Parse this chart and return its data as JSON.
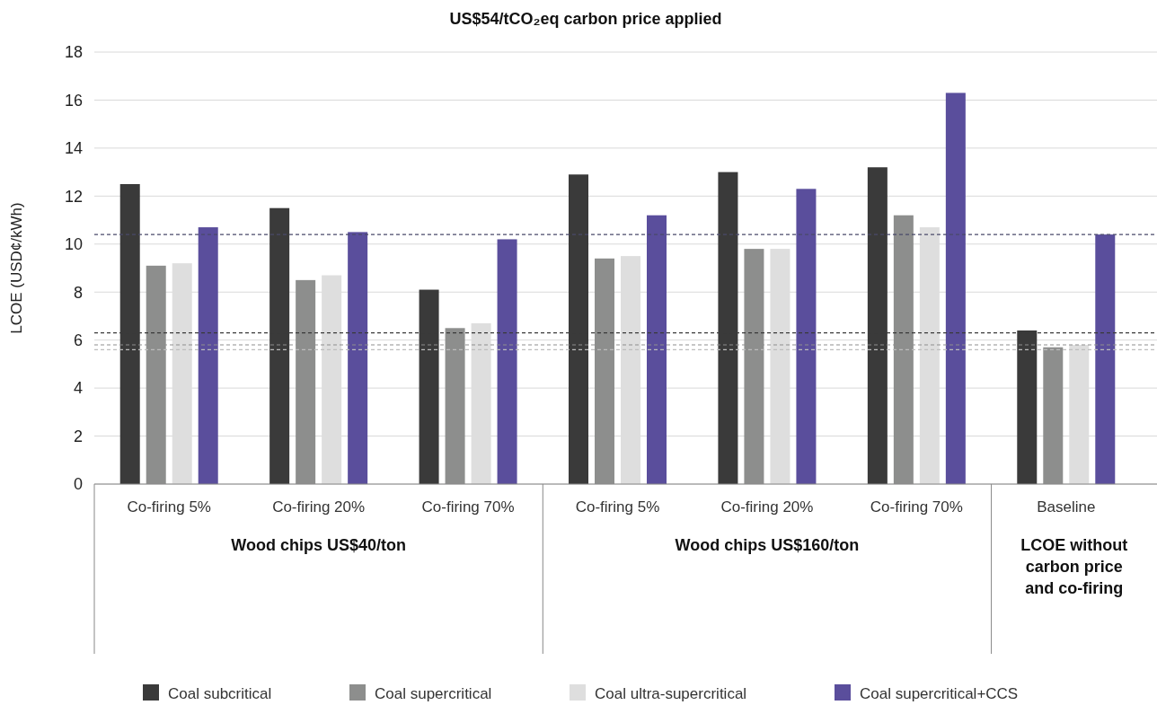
{
  "chart_data": {
    "type": "bar",
    "title": "US$54/tCO₂eq carbon price applied",
    "ylabel": "LCOE (USD¢/kWh)",
    "categories": [
      "Co-firing 5%",
      "Co-firing 20%",
      "Co-firing 70%",
      "Co-firing 5%",
      "Co-firing 20%",
      "Co-firing 70%",
      "Baseline"
    ],
    "series": [
      {
        "name": "Coal subcritical",
        "color": "#3a3a3a",
        "values": [
          12.5,
          11.5,
          8.1,
          12.9,
          13.0,
          13.2,
          6.4
        ]
      },
      {
        "name": "Coal supercritical",
        "color": "#8d8e8d",
        "values": [
          9.1,
          8.5,
          6.5,
          9.4,
          9.8,
          11.2,
          5.7
        ]
      },
      {
        "name": "Coal ultra-supercritical",
        "color": "#dedede",
        "values": [
          9.2,
          8.7,
          6.7,
          9.5,
          9.8,
          10.7,
          5.8
        ]
      },
      {
        "name": "Coal supercritical+CCS",
        "color": "#5a4e9c",
        "values": [
          10.7,
          10.5,
          10.2,
          11.2,
          12.3,
          16.3,
          10.4
        ]
      }
    ],
    "ylim": [
      0,
      18
    ],
    "yticks": [
      0,
      2,
      4,
      6,
      8,
      10,
      12,
      14,
      16,
      18
    ],
    "grid": "y",
    "legend": "bottom",
    "ref_lines": [
      {
        "axis": "y",
        "value": 10.4,
        "color": "#4a4a6a",
        "line_style": "dashed"
      },
      {
        "axis": "y",
        "value": 6.3,
        "color": "#3a3a3a",
        "line_style": "dashed"
      },
      {
        "axis": "y",
        "value": 5.8,
        "color": "#8d8e8d",
        "line_style": "dashed"
      },
      {
        "axis": "y",
        "value": 5.6,
        "color": "#bdbdbd",
        "line_style": "dashed"
      }
    ],
    "annotations": [
      "Wood chips US$40/ton",
      "Wood chips US$160/ton",
      "LCOE without carbon price and co-firing"
    ]
  }
}
